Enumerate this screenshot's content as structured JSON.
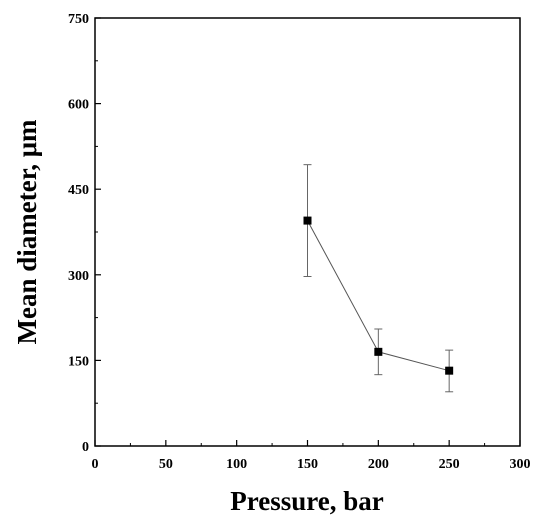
{
  "chart_data": {
    "type": "line",
    "xlabel": "Pressure, bar",
    "ylabel": "Mean diameter, μm",
    "xlim": [
      0,
      300
    ],
    "ylim": [
      0,
      750
    ],
    "x_ticks": [
      0,
      50,
      100,
      150,
      200,
      250,
      300
    ],
    "y_ticks": [
      0,
      150,
      300,
      450,
      600,
      750
    ],
    "grid": false,
    "series": [
      {
        "x": [
          150,
          200,
          250
        ],
        "y": [
          395,
          165,
          132
        ],
        "error_low": [
          297,
          125,
          95
        ],
        "error_high": [
          493,
          205,
          168
        ],
        "marker": "square",
        "color": "#000000",
        "line_color": "#555555"
      }
    ]
  }
}
